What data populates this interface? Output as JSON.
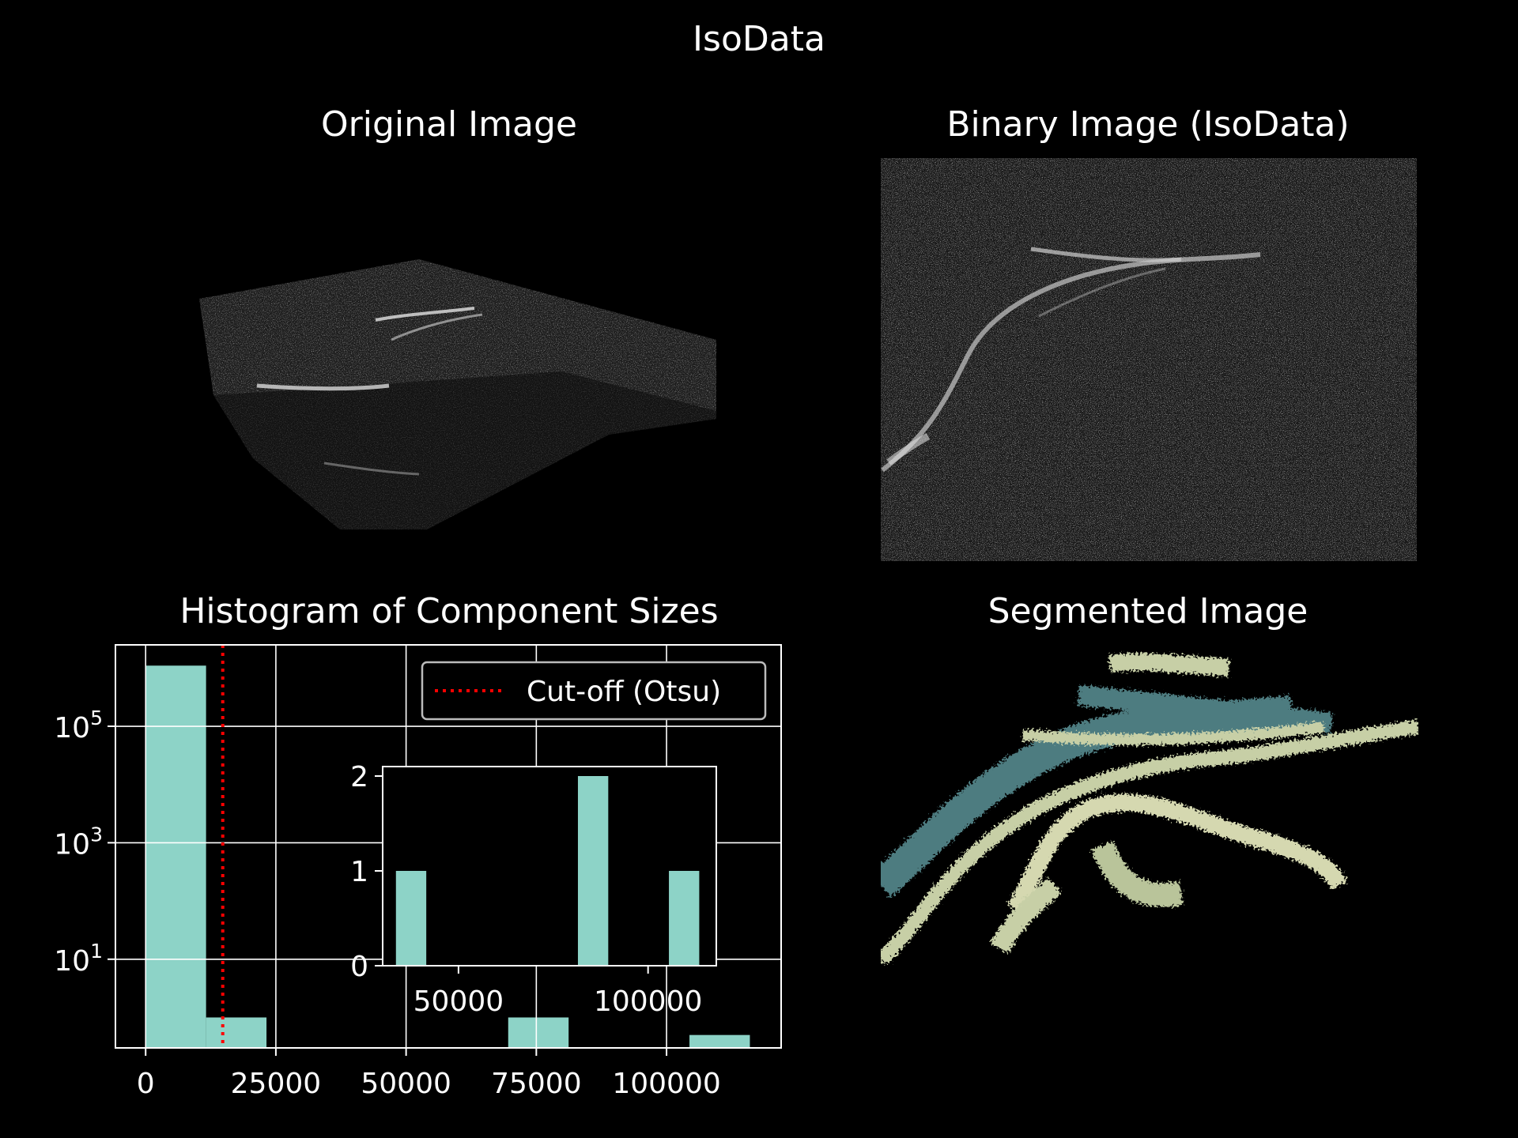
{
  "figure": {
    "title": "IsoData"
  },
  "panels": {
    "original": {
      "title": "Original Image"
    },
    "binary": {
      "title": "Binary Image (IsoData)"
    },
    "histogram": {
      "title": "Histogram of Component Sizes"
    },
    "segmented": {
      "title": "Segmented Image"
    }
  },
  "colors": {
    "bar": "#8dd3c7",
    "cutoff": "#ff0000",
    "background": "#000000",
    "axes": "#ffffff"
  },
  "chart_data": [
    {
      "type": "bar",
      "title": "Histogram of Component Sizes",
      "yscale": "log",
      "xlim": [
        -5800,
        122000
      ],
      "ylim": [
        0.3,
        2500000
      ],
      "xticks": [
        0,
        25000,
        50000,
        75000,
        100000
      ],
      "xtick_labels": [
        "0",
        "25000",
        "50000",
        "75000",
        "100000"
      ],
      "yticks": [
        100000,
        1000,
        10
      ],
      "ytick_labels": [
        {
          "base": "10",
          "exp": "5"
        },
        {
          "base": "10",
          "exp": "3"
        },
        {
          "base": "10",
          "exp": "1"
        }
      ],
      "grid": true,
      "bins": [
        {
          "x0": 0,
          "x1": 11600,
          "count": 1100000
        },
        {
          "x0": 11600,
          "x1": 23200,
          "count": 1
        },
        {
          "x0": 69600,
          "x1": 81200,
          "count": 1
        },
        {
          "x0": 104400,
          "x1": 116000,
          "count": 0.5
        }
      ],
      "cutoff": {
        "x": 14800,
        "label": "Cut-off (Otsu)"
      },
      "legend": "top-right"
    },
    {
      "type": "bar",
      "inset": true,
      "xlim": [
        30000,
        118000
      ],
      "ylim": [
        0,
        2.1
      ],
      "xticks": [
        50000,
        100000
      ],
      "xtick_labels": [
        "50000",
        "100000"
      ],
      "yticks": [
        0,
        1,
        2
      ],
      "ytick_labels": [
        "0",
        "1",
        "2"
      ],
      "grid": false,
      "bins": [
        {
          "x0": 33500,
          "x1": 41500,
          "count": 1
        },
        {
          "x0": 81500,
          "x1": 89500,
          "count": 2
        },
        {
          "x0": 105500,
          "x1": 113500,
          "count": 1
        }
      ]
    }
  ]
}
